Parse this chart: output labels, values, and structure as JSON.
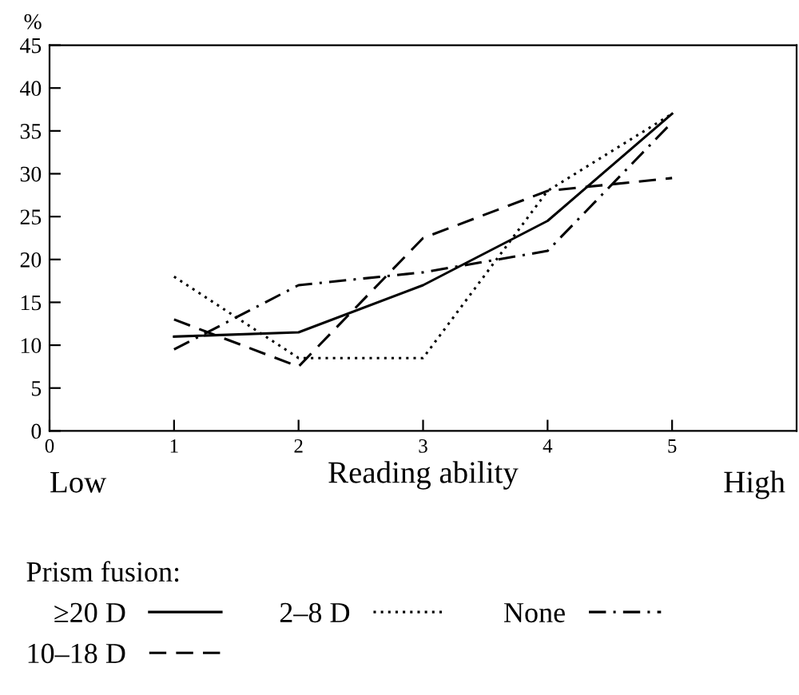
{
  "chart_data": {
    "type": "line",
    "xlabel": "Reading ability",
    "ylabel": "%",
    "legend_title": "Prism fusion:",
    "x": [
      1,
      2,
      3,
      4,
      5
    ],
    "series": [
      {
        "name": "≥20 D",
        "color": "#000000",
        "line_style": "solid",
        "values": [
          11,
          11.5,
          17,
          24.5,
          37
        ]
      },
      {
        "name": "10–18 D",
        "color": "#000000",
        "line_style": "dashed",
        "values": [
          13,
          7.5,
          22.5,
          28,
          29.5
        ]
      },
      {
        "name": "2–8 D",
        "color": "#000000",
        "line_style": "dotted",
        "values": [
          18,
          8.5,
          8.5,
          28,
          37
        ]
      },
      {
        "name": "None",
        "color": "#000000",
        "line_style": "dashdot",
        "values": [
          9.5,
          17,
          18.5,
          21,
          36
        ]
      }
    ],
    "xlim": [
      0,
      6
    ],
    "xticks": [
      0,
      1,
      2,
      3,
      4,
      5
    ],
    "ylim": [
      0,
      45
    ],
    "yticks": [
      0,
      5,
      10,
      15,
      20,
      25,
      30,
      35,
      40,
      45
    ],
    "annotations": [
      "Low",
      "High"
    ],
    "grid": false,
    "legend": "bottom",
    "marker": "none"
  }
}
